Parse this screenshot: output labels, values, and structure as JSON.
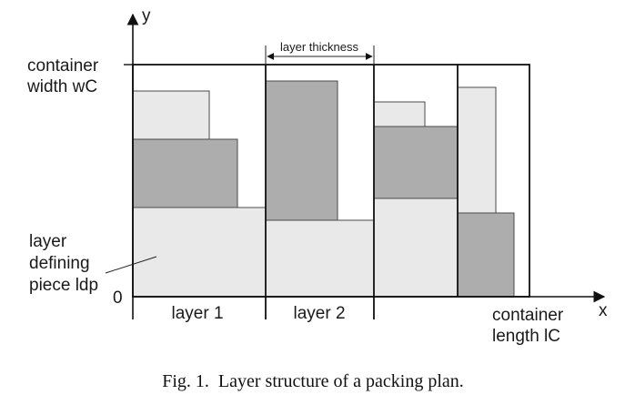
{
  "diagram": {
    "axis_y_label": "y",
    "axis_x_label": "x",
    "origin_label": "0",
    "container_width_line1": "container",
    "container_width_line2": "width wC",
    "layer_thickness": "layer thickness",
    "ldp_line1": "layer",
    "ldp_line2": "defining",
    "ldp_line3": "piece ldp",
    "layer1": "layer 1",
    "layer2": "layer 2",
    "container_length_line1": "container",
    "container_length_line2": "length lC",
    "caption": "Fig. 1.  Layer structure of a packing plan."
  },
  "colors": {
    "light_piece": "#e9e9e9",
    "dark_piece": "#adadad",
    "outline": "#111111"
  }
}
